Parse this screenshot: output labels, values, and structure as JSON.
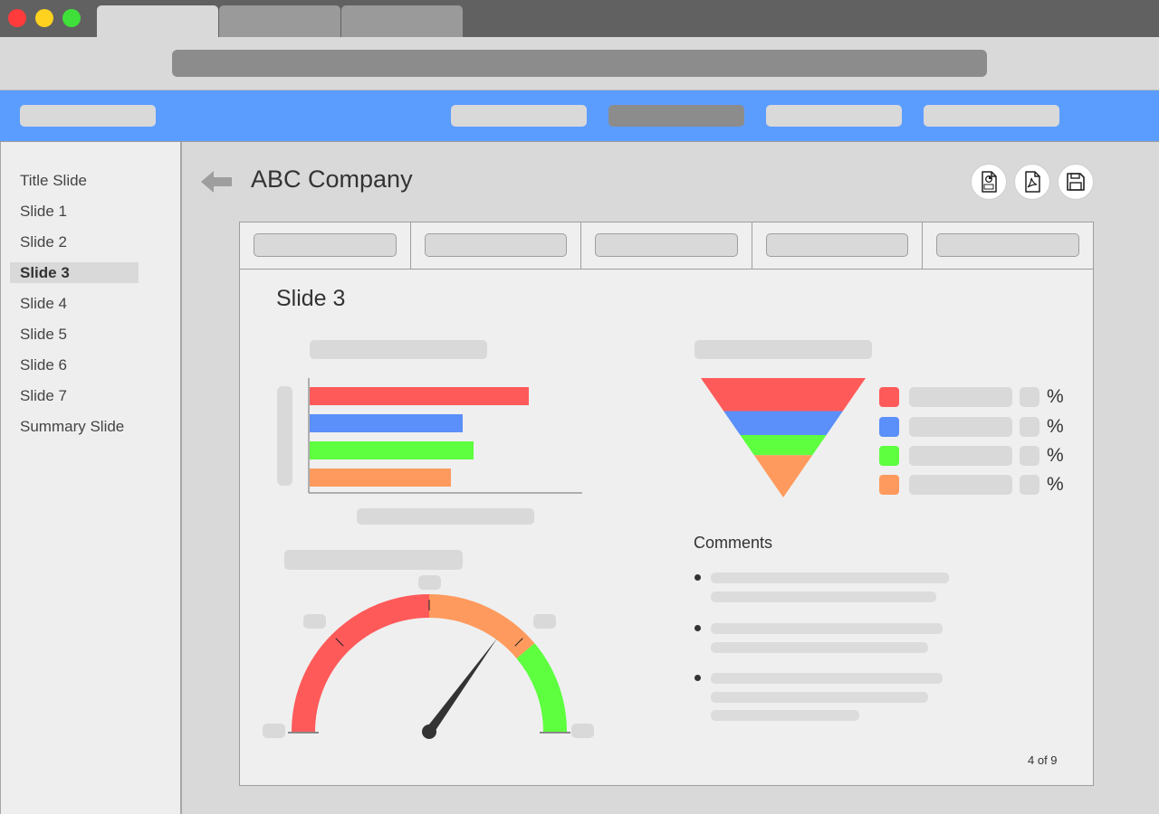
{
  "sidebar": {
    "items": [
      {
        "label": "Title Slide"
      },
      {
        "label": "Slide 1"
      },
      {
        "label": "Slide 2"
      },
      {
        "label": "Slide 3",
        "active": true
      },
      {
        "label": "Slide 4"
      },
      {
        "label": "Slide 5"
      },
      {
        "label": "Slide 6"
      },
      {
        "label": "Slide 7"
      },
      {
        "label": "Summary Slide"
      }
    ]
  },
  "header": {
    "title": "ABC Company",
    "actions": [
      {
        "icon": "ppt-file-icon"
      },
      {
        "icon": "pdf-file-icon"
      },
      {
        "icon": "save-icon"
      }
    ]
  },
  "slide": {
    "title": "Slide 3",
    "comments_title": "Comments",
    "pct_symbol": "%",
    "page_indicator": "4 of 9"
  },
  "colors": {
    "red": "#ff5a5a",
    "blue": "#5b8ff9",
    "green": "#5dff3f",
    "orange": "#ff9a5e",
    "nav_blue": "#5b9dff"
  },
  "chart_data": [
    {
      "type": "bar",
      "orientation": "horizontal",
      "values": [
        242,
        169,
        181,
        156
      ],
      "colors": [
        "#ff5a5a",
        "#5b8ff9",
        "#5dff3f",
        "#ff9a5e"
      ],
      "xlim": [
        0,
        300
      ]
    },
    {
      "type": "funnel",
      "values": [
        36,
        26,
        22,
        46
      ],
      "colors": [
        "#ff5a5a",
        "#5b8ff9",
        "#5dff3f",
        "#ff9a5e"
      ]
    },
    {
      "type": "gauge",
      "range": [
        0,
        180
      ],
      "needle_value": 126,
      "bands": [
        {
          "from": 0,
          "to": 90,
          "color": "#ff5a5a"
        },
        {
          "from": 90,
          "to": 140,
          "color": "#ff9a5e"
        },
        {
          "from": 140,
          "to": 180,
          "color": "#5dff3f"
        }
      ]
    }
  ]
}
